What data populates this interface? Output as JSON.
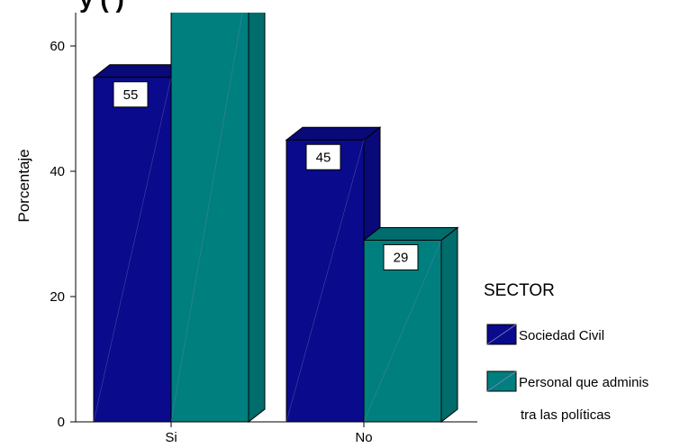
{
  "chart_data": {
    "type": "bar",
    "title": "",
    "title_fragment": "y      (    )",
    "xlabel": "",
    "ylabel": "Porcentaje",
    "categories": [
      "Si",
      "No"
    ],
    "series": [
      {
        "name": "Sociedad Civil",
        "values": [
          55,
          45
        ],
        "labels": [
          "55",
          "45"
        ],
        "color": "#0a0a8c"
      },
      {
        "name": "Personal que adminis tra las políticas",
        "legend_lines": [
          "Personal que adminis",
          "tra las políticas"
        ],
        "values": [
          71,
          29
        ],
        "labels": [
          "",
          "29"
        ],
        "color": "#007f7f"
      }
    ],
    "ylim": [
      0,
      66
    ],
    "yticks": [
      0,
      20,
      40,
      60
    ],
    "grid": false,
    "legend": {
      "title": "SECTOR",
      "placement": "right"
    }
  }
}
